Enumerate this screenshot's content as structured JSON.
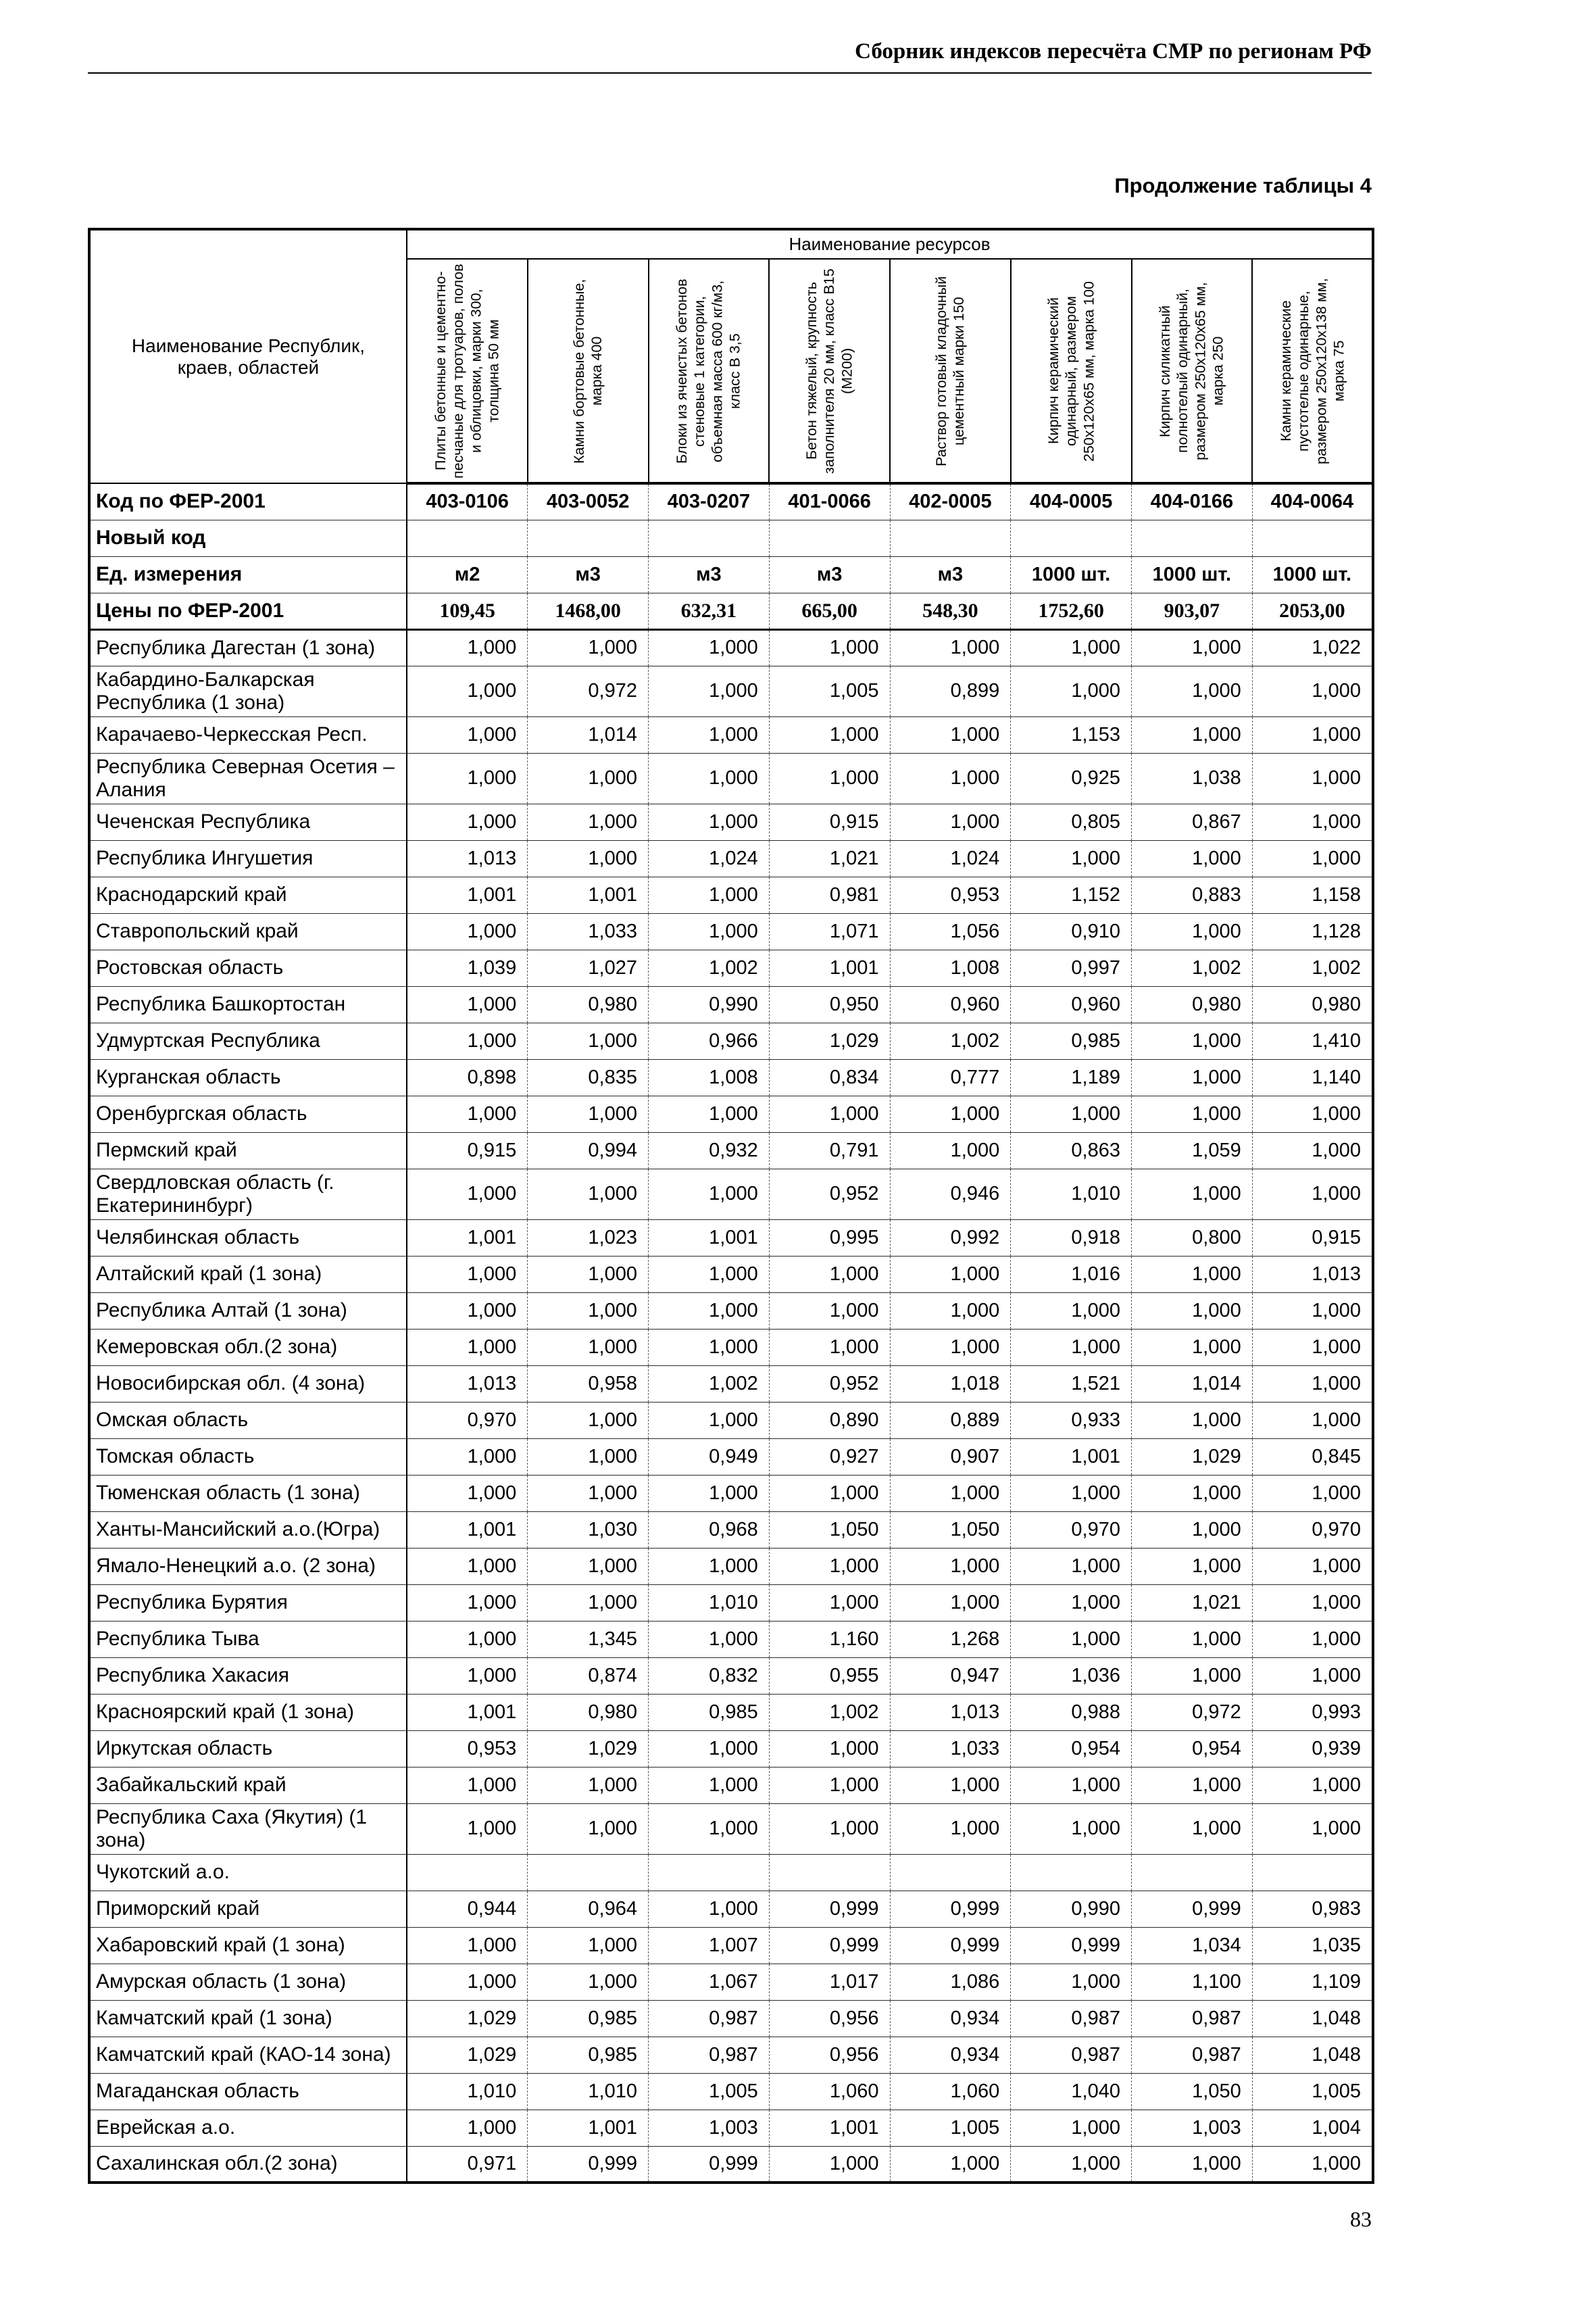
{
  "page": {
    "header": "Сборник индексов пересчёта СМР по регионам РФ",
    "table_caption": "Продолжение таблицы 4",
    "page_number": "83"
  },
  "table": {
    "resources_header": "Наименование ресурсов",
    "region_header": "Наименование Республик, краев, областей",
    "columns": [
      "Плиты бетонные и цементно-песчаные для тротуаров, полов и облицовки, марки 300, толщина 50 мм",
      "Камни бортовые бетонные, марка 400",
      "Блоки из ячеистых бетонов стеновые 1 категории, объемная масса 600 кг/м3, класс В 3,5",
      "Бетон тяжелый, крупность заполнителя 20 мм, класс В15 (М200)",
      "Раствор готовый кладочный цементный марки 150",
      "Кирпич керамический одинарный, размером 250х120х65 мм, марка 100",
      "Кирпич силикатный полнотелый одинарный, размером 250х120х65 мм, марка 250",
      "Камни керамические пустотелые одинарные, размером 250х120х138 мм, марка 75"
    ],
    "meta_rows": [
      {
        "label": "Код по ФЕР-2001",
        "values": [
          "403-0106",
          "403-0052",
          "403-0207",
          "401-0066",
          "402-0005",
          "404-0005",
          "404-0166",
          "404-0064"
        ]
      },
      {
        "label": "Новый код",
        "values": [
          "",
          "",
          "",
          "",
          "",
          "",
          "",
          ""
        ]
      },
      {
        "label": "Ед. измерения",
        "values": [
          "м2",
          "м3",
          "м3",
          "м3",
          "м3",
          "1000 шт.",
          "1000 шт.",
          "1000 шт."
        ]
      },
      {
        "label": "Цены по ФЕР-2001",
        "values": [
          "109,45",
          "1468,00",
          "632,31",
          "665,00",
          "548,30",
          "1752,60",
          "903,07",
          "2053,00"
        ]
      }
    ],
    "rows": [
      {
        "region": "Республика Дагестан (1 зона)",
        "values": [
          "1,000",
          "1,000",
          "1,000",
          "1,000",
          "1,000",
          "1,000",
          "1,000",
          "1,022"
        ]
      },
      {
        "region": "Кабардино-Балкарская Республика (1 зона)",
        "values": [
          "1,000",
          "0,972",
          "1,000",
          "1,005",
          "0,899",
          "1,000",
          "1,000",
          "1,000"
        ]
      },
      {
        "region": "Карачаево-Черкесская Респ.",
        "values": [
          "1,000",
          "1,014",
          "1,000",
          "1,000",
          "1,000",
          "1,153",
          "1,000",
          "1,000"
        ]
      },
      {
        "region": "Республика Северная Осетия – Алания",
        "values": [
          "1,000",
          "1,000",
          "1,000",
          "1,000",
          "1,000",
          "0,925",
          "1,038",
          "1,000"
        ]
      },
      {
        "region": "Чеченская Республика",
        "values": [
          "1,000",
          "1,000",
          "1,000",
          "0,915",
          "1,000",
          "0,805",
          "0,867",
          "1,000"
        ]
      },
      {
        "region": "Республика Ингушетия",
        "values": [
          "1,013",
          "1,000",
          "1,024",
          "1,021",
          "1,024",
          "1,000",
          "1,000",
          "1,000"
        ]
      },
      {
        "region": "Краснодарский край",
        "values": [
          "1,001",
          "1,001",
          "1,000",
          "0,981",
          "0,953",
          "1,152",
          "0,883",
          "1,158"
        ]
      },
      {
        "region": "Ставропольский край",
        "values": [
          "1,000",
          "1,033",
          "1,000",
          "1,071",
          "1,056",
          "0,910",
          "1,000",
          "1,128"
        ]
      },
      {
        "region": "Ростовская область",
        "values": [
          "1,039",
          "1,027",
          "1,002",
          "1,001",
          "1,008",
          "0,997",
          "1,002",
          "1,002"
        ]
      },
      {
        "region": "Республика Башкортостан",
        "values": [
          "1,000",
          "0,980",
          "0,990",
          "0,950",
          "0,960",
          "0,960",
          "0,980",
          "0,980"
        ]
      },
      {
        "region": "Удмуртская Республика",
        "values": [
          "1,000",
          "1,000",
          "0,966",
          "1,029",
          "1,002",
          "0,985",
          "1,000",
          "1,410"
        ]
      },
      {
        "region": "Курганская область",
        "values": [
          "0,898",
          "0,835",
          "1,008",
          "0,834",
          "0,777",
          "1,189",
          "1,000",
          "1,140"
        ]
      },
      {
        "region": "Оренбургская область",
        "values": [
          "1,000",
          "1,000",
          "1,000",
          "1,000",
          "1,000",
          "1,000",
          "1,000",
          "1,000"
        ]
      },
      {
        "region": "Пермский край",
        "values": [
          "0,915",
          "0,994",
          "0,932",
          "0,791",
          "1,000",
          "0,863",
          "1,059",
          "1,000"
        ]
      },
      {
        "region": "Свердловская область (г. Екатерининбург)",
        "values": [
          "1,000",
          "1,000",
          "1,000",
          "0,952",
          "0,946",
          "1,010",
          "1,000",
          "1,000"
        ]
      },
      {
        "region": "Челябинская область",
        "values": [
          "1,001",
          "1,023",
          "1,001",
          "0,995",
          "0,992",
          "0,918",
          "0,800",
          "0,915"
        ]
      },
      {
        "region": "Алтайский край (1 зона)",
        "values": [
          "1,000",
          "1,000",
          "1,000",
          "1,000",
          "1,000",
          "1,016",
          "1,000",
          "1,013"
        ]
      },
      {
        "region": "Республика Алтай (1 зона)",
        "values": [
          "1,000",
          "1,000",
          "1,000",
          "1,000",
          "1,000",
          "1,000",
          "1,000",
          "1,000"
        ]
      },
      {
        "region": "Кемеровская обл.(2 зона)",
        "values": [
          "1,000",
          "1,000",
          "1,000",
          "1,000",
          "1,000",
          "1,000",
          "1,000",
          "1,000"
        ]
      },
      {
        "region": "Новосибирская обл. (4 зона)",
        "values": [
          "1,013",
          "0,958",
          "1,002",
          "0,952",
          "1,018",
          "1,521",
          "1,014",
          "1,000"
        ]
      },
      {
        "region": "Омская область",
        "values": [
          "0,970",
          "1,000",
          "1,000",
          "0,890",
          "0,889",
          "0,933",
          "1,000",
          "1,000"
        ]
      },
      {
        "region": "Томская область",
        "values": [
          "1,000",
          "1,000",
          "0,949",
          "0,927",
          "0,907",
          "1,001",
          "1,029",
          "0,845"
        ]
      },
      {
        "region": "Тюменская область (1 зона)",
        "values": [
          "1,000",
          "1,000",
          "1,000",
          "1,000",
          "1,000",
          "1,000",
          "1,000",
          "1,000"
        ]
      },
      {
        "region": "Ханты-Мансийский а.о.(Югра)",
        "values": [
          "1,001",
          "1,030",
          "0,968",
          "1,050",
          "1,050",
          "0,970",
          "1,000",
          "0,970"
        ]
      },
      {
        "region": "Ямало-Ненецкий а.о. (2 зона)",
        "values": [
          "1,000",
          "1,000",
          "1,000",
          "1,000",
          "1,000",
          "1,000",
          "1,000",
          "1,000"
        ]
      },
      {
        "region": "Республика Бурятия",
        "values": [
          "1,000",
          "1,000",
          "1,010",
          "1,000",
          "1,000",
          "1,000",
          "1,021",
          "1,000"
        ]
      },
      {
        "region": "Республика Тыва",
        "values": [
          "1,000",
          "1,345",
          "1,000",
          "1,160",
          "1,268",
          "1,000",
          "1,000",
          "1,000"
        ]
      },
      {
        "region": "Республика Хакасия",
        "values": [
          "1,000",
          "0,874",
          "0,832",
          "0,955",
          "0,947",
          "1,036",
          "1,000",
          "1,000"
        ]
      },
      {
        "region": "Красноярский край (1 зона)",
        "values": [
          "1,001",
          "0,980",
          "0,985",
          "1,002",
          "1,013",
          "0,988",
          "0,972",
          "0,993"
        ]
      },
      {
        "region": "Иркутская область",
        "values": [
          "0,953",
          "1,029",
          "1,000",
          "1,000",
          "1,033",
          "0,954",
          "0,954",
          "0,939"
        ]
      },
      {
        "region": "Забайкальский край",
        "values": [
          "1,000",
          "1,000",
          "1,000",
          "1,000",
          "1,000",
          "1,000",
          "1,000",
          "1,000"
        ]
      },
      {
        "region": "Республика Саха (Якутия) (1 зона)",
        "values": [
          "1,000",
          "1,000",
          "1,000",
          "1,000",
          "1,000",
          "1,000",
          "1,000",
          "1,000"
        ]
      },
      {
        "region": "Чукотский а.о.",
        "values": [
          "",
          "",
          "",
          "",
          "",
          "",
          "",
          ""
        ]
      },
      {
        "region": "Приморский край",
        "values": [
          "0,944",
          "0,964",
          "1,000",
          "0,999",
          "0,999",
          "0,990",
          "0,999",
          "0,983"
        ]
      },
      {
        "region": "Хабаровский край (1 зона)",
        "values": [
          "1,000",
          "1,000",
          "1,007",
          "0,999",
          "0,999",
          "0,999",
          "1,034",
          "1,035"
        ]
      },
      {
        "region": "Амурская область (1 зона)",
        "values": [
          "1,000",
          "1,000",
          "1,067",
          "1,017",
          "1,086",
          "1,000",
          "1,100",
          "1,109"
        ]
      },
      {
        "region": "Камчатский край (1 зона)",
        "values": [
          "1,029",
          "0,985",
          "0,987",
          "0,956",
          "0,934",
          "0,987",
          "0,987",
          "1,048"
        ]
      },
      {
        "region": "Камчатский край (КАО-14 зона)",
        "values": [
          "1,029",
          "0,985",
          "0,987",
          "0,956",
          "0,934",
          "0,987",
          "0,987",
          "1,048"
        ]
      },
      {
        "region": "Магаданская область",
        "values": [
          "1,010",
          "1,010",
          "1,005",
          "1,060",
          "1,060",
          "1,040",
          "1,050",
          "1,005"
        ]
      },
      {
        "region": "Еврейская а.о.",
        "values": [
          "1,000",
          "1,001",
          "1,003",
          "1,001",
          "1,005",
          "1,000",
          "1,003",
          "1,004"
        ]
      },
      {
        "region": "Сахалинская обл.(2 зона)",
        "values": [
          "0,971",
          "0,999",
          "0,999",
          "1,000",
          "1,000",
          "1,000",
          "1,000",
          "1,000"
        ]
      }
    ]
  }
}
